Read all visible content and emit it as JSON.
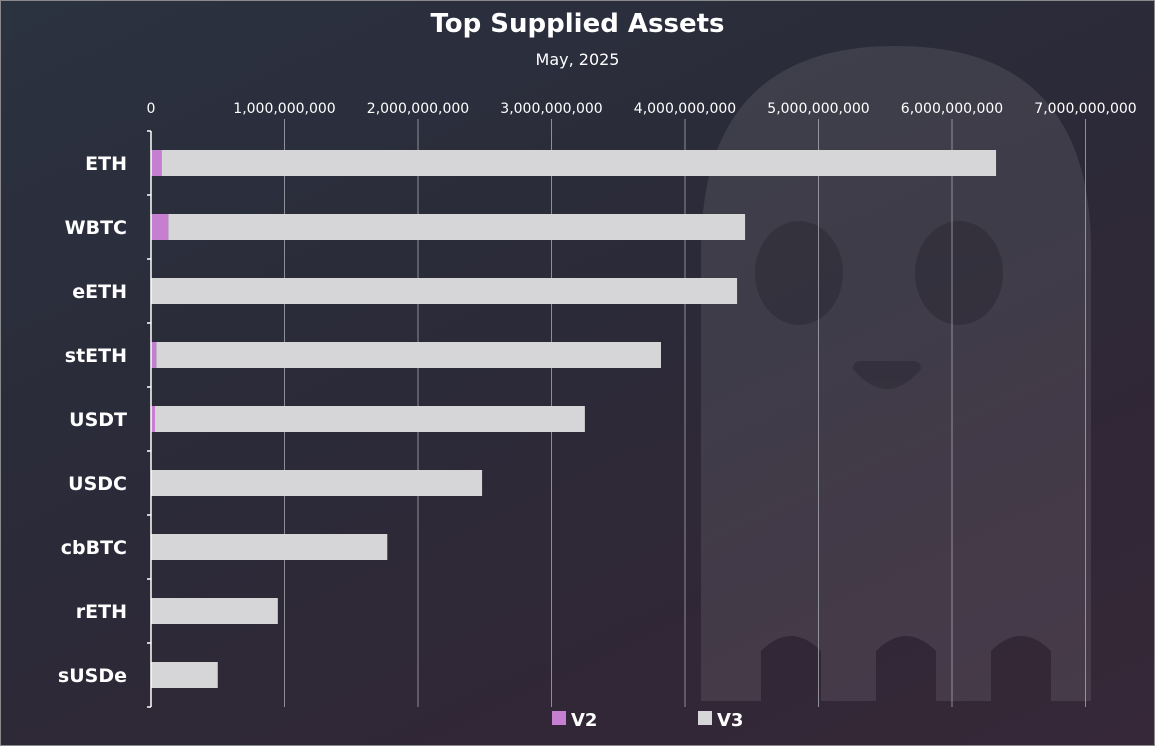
{
  "colors": {
    "v2": "#c67fd0",
    "v3": "#d6d6d8",
    "gridline": "#aeb0b8",
    "axis": "#ffffff"
  },
  "chart_data": {
    "type": "bar",
    "orientation": "horizontal",
    "stacked": true,
    "title": "Top Supplied Assets",
    "subtitle": "May, 2025",
    "xlabel": "",
    "ylabel": "",
    "xlim": [
      0,
      7000000000
    ],
    "xticks": [
      0,
      1000000000,
      2000000000,
      3000000000,
      4000000000,
      5000000000,
      6000000000,
      7000000000
    ],
    "xtick_labels": [
      "0",
      "1,000,000,000",
      "2,000,000,000",
      "3,000,000,000",
      "4,000,000,000",
      "5,000,000,000",
      "6,000,000,000",
      "7,000,000,000"
    ],
    "categories": [
      "ETH",
      "WBTC",
      "eETH",
      "stETH",
      "USDT",
      "USDC",
      "cbBTC",
      "rETH",
      "sUSDe"
    ],
    "series": [
      {
        "name": "V2",
        "color": "#c67fd0",
        "values": [
          80000000,
          130000000,
          0,
          40000000,
          30000000,
          0,
          0,
          0,
          0
        ]
      },
      {
        "name": "V3",
        "color": "#d6d6d8",
        "values": [
          6250000000,
          4320000000,
          4390000000,
          3780000000,
          3220000000,
          2480000000,
          1770000000,
          950000000,
          500000000
        ]
      }
    ],
    "grid": true,
    "legend": "bottom-center"
  }
}
